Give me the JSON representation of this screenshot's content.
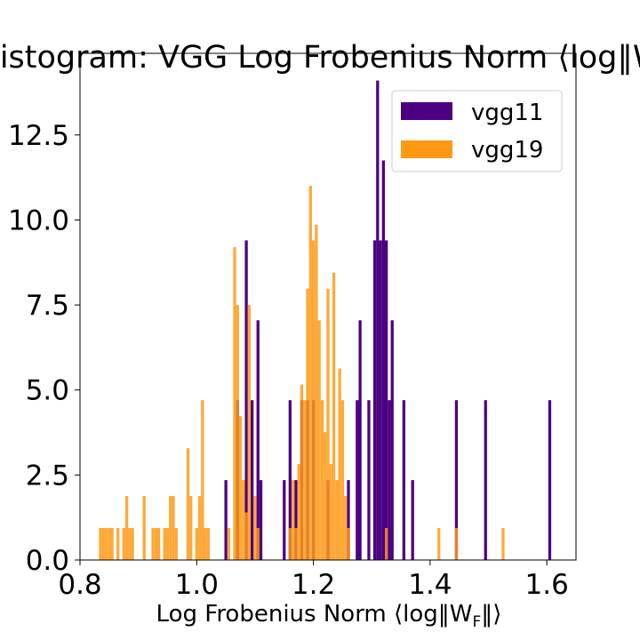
{
  "chart_data": {
    "type": "bar",
    "title": "Histogram: VGG Log Frobenius Norm ⟨log‖W",
    "xlabel": "Log Frobenius Norm ⟨log‖W",
    "xlabel_sub": "F",
    "xlabel_end": "‖⟩",
    "xlim": [
      0.8,
      1.65
    ],
    "ylim": [
      0,
      14.9
    ],
    "xticks": [
      "0.8",
      "1.0",
      "1.2",
      "1.4",
      "1.6"
    ],
    "yticks": [
      "0.0",
      "2.5",
      "5.0",
      "7.5",
      "10.0",
      "12.5"
    ],
    "grid": false,
    "legend_position": "top-right",
    "series": [
      {
        "name": "vgg11",
        "color": "#4b0082",
        "x": [
          1.05,
          1.07,
          1.085,
          1.095,
          1.105,
          1.11,
          1.15,
          1.16,
          1.17,
          1.18,
          1.19,
          1.2,
          1.225,
          1.26,
          1.275,
          1.28,
          1.295,
          1.305,
          1.31,
          1.315,
          1.32,
          1.325,
          1.33,
          1.335,
          1.355,
          1.37,
          1.445,
          1.495,
          1.605
        ],
        "values": [
          2.35,
          4.7,
          9.4,
          4.7,
          7.05,
          2.35,
          2.35,
          4.7,
          2.35,
          4.7,
          4.7,
          4.7,
          2.35,
          2.35,
          4.7,
          7.05,
          4.7,
          9.4,
          14.1,
          9.4,
          11.75,
          9.4,
          4.7,
          7.05,
          4.7,
          2.35,
          4.7,
          4.7,
          4.7
        ]
      },
      {
        "name": "vgg19",
        "color": "#ff9914",
        "x": [
          0.835,
          0.84,
          0.845,
          0.85,
          0.855,
          0.865,
          0.875,
          0.88,
          0.885,
          0.89,
          0.91,
          0.925,
          0.93,
          0.935,
          0.945,
          0.95,
          0.955,
          0.96,
          0.965,
          0.985,
          0.99,
          1.0,
          1.005,
          1.01,
          1.015,
          1.02,
          1.055,
          1.065,
          1.07,
          1.075,
          1.08,
          1.085,
          1.09,
          1.1,
          1.105,
          1.16,
          1.165,
          1.17,
          1.175,
          1.18,
          1.185,
          1.19,
          1.195,
          1.2,
          1.205,
          1.21,
          1.215,
          1.22,
          1.225,
          1.23,
          1.235,
          1.24,
          1.245,
          1.25,
          1.255,
          1.26,
          1.325,
          1.415,
          1.445,
          1.525
        ],
        "values": [
          0.94,
          0.94,
          0.94,
          0.94,
          0.94,
          0.94,
          0.94,
          1.88,
          0.94,
          0.94,
          1.88,
          0.94,
          0.94,
          0.94,
          0.94,
          0.94,
          1.88,
          1.88,
          0.94,
          3.29,
          1.88,
          0.94,
          1.88,
          4.7,
          0.94,
          0.94,
          0.94,
          9.2,
          7.5,
          4.23,
          2.35,
          1.4,
          7.5,
          1.88,
          0.94,
          0.94,
          2.35,
          0.94,
          2.82,
          5.16,
          4.7,
          7.98,
          11.0,
          9.4,
          9.86,
          7.05,
          4.7,
          3.76,
          7.98,
          2.82,
          8.45,
          2.35,
          5.63,
          4.7,
          1.88,
          0.94,
          0.94,
          0.94,
          0.94,
          0.94
        ]
      }
    ]
  }
}
